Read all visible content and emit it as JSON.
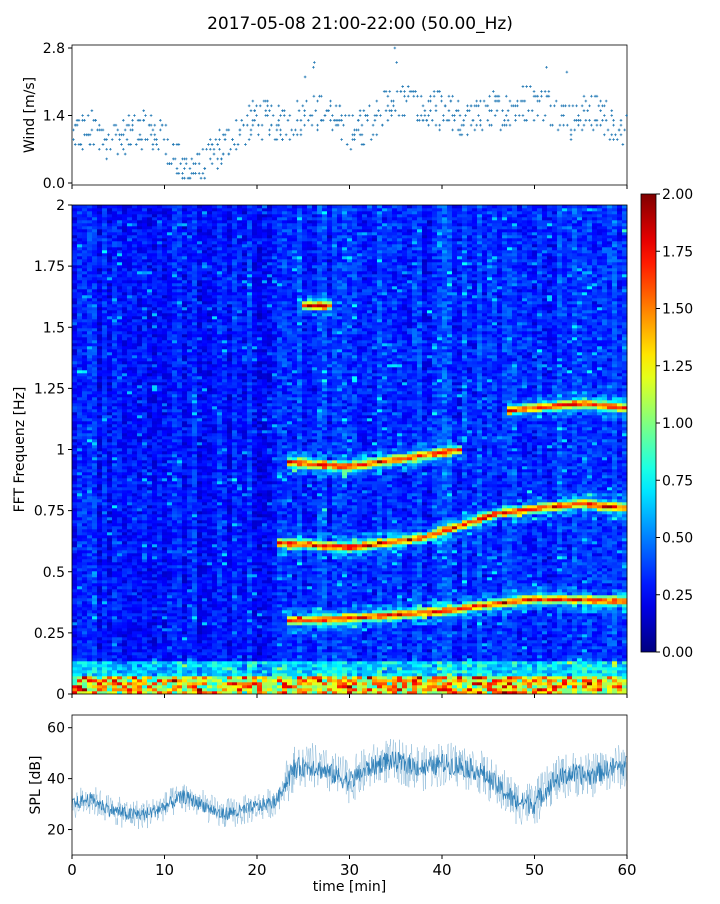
{
  "title": "2017-05-08 21:00-22:00 (50.00_Hz)",
  "colors": {
    "series": "#1f77b4"
  },
  "chart_data": [
    {
      "type": "scatter",
      "name": "wind",
      "ylabel": "Wind [m/s]",
      "xlim": [
        0,
        60
      ],
      "ylim": [
        0,
        2.8
      ],
      "yticks": [
        "0.0",
        "1.4",
        "2.8"
      ],
      "x": [
        0,
        2,
        4,
        6,
        8,
        10,
        12,
        14,
        16,
        18,
        20,
        22,
        24,
        26,
        28,
        30,
        32,
        34,
        36,
        38,
        40,
        42,
        44,
        46,
        48,
        50,
        52,
        54,
        56,
        58,
        60
      ],
      "y": [
        1.0,
        1.1,
        0.9,
        1.0,
        1.1,
        0.9,
        0.3,
        0.3,
        0.7,
        1.0,
        1.4,
        1.2,
        1.3,
        1.5,
        1.4,
        1.1,
        1.2,
        1.6,
        1.7,
        1.5,
        1.5,
        1.3,
        1.4,
        1.5,
        1.6,
        1.7,
        1.6,
        1.3,
        1.5,
        1.3,
        1.1
      ]
    },
    {
      "type": "heatmap",
      "name": "spectrogram",
      "ylabel": "FFT Frequenz [Hz]",
      "xlim": [
        0,
        60
      ],
      "ylim": [
        0,
        2
      ],
      "yticks": [
        "0",
        "0.25",
        "0.5",
        "0.75",
        "1",
        "1.25",
        "1.5",
        "1.75",
        "2"
      ],
      "colorbar": {
        "min": 0,
        "max": 2,
        "ticks": [
          "0.00",
          "0.25",
          "0.50",
          "0.75",
          "1.00",
          "1.25",
          "1.50",
          "1.75",
          "2.00"
        ]
      },
      "ridges": [
        {
          "x": [
            23,
            30,
            40,
            50,
            60
          ],
          "freq": [
            0.3,
            0.31,
            0.34,
            0.39,
            0.38
          ]
        },
        {
          "x": [
            22,
            30,
            38,
            46,
            55,
            60
          ],
          "freq": [
            0.62,
            0.6,
            0.64,
            0.74,
            0.78,
            0.76
          ]
        },
        {
          "x": [
            23,
            30,
            35,
            42
          ],
          "freq": [
            0.95,
            0.93,
            0.96,
            1.0
          ]
        },
        {
          "x": [
            47,
            55,
            60
          ],
          "freq": [
            1.16,
            1.19,
            1.17
          ]
        },
        {
          "x": [
            25,
            28
          ],
          "freq": [
            1.59,
            1.59
          ]
        }
      ]
    },
    {
      "type": "area",
      "name": "spl",
      "ylabel": "SPL [dB]",
      "xlabel": "time [min]",
      "xlim": [
        0,
        60
      ],
      "ylim": [
        10,
        65
      ],
      "xticks": [
        "0",
        "10",
        "20",
        "30",
        "40",
        "50",
        "60"
      ],
      "yticks": [
        "20",
        "40",
        "60"
      ],
      "x": [
        0,
        2,
        4,
        6,
        8,
        10,
        12,
        14,
        16,
        18,
        20,
        22,
        24,
        26,
        28,
        30,
        32,
        34,
        36,
        38,
        40,
        42,
        44,
        46,
        48,
        50,
        52,
        54,
        56,
        58,
        60
      ],
      "y": [
        30,
        32,
        28,
        26,
        26,
        29,
        33,
        30,
        26,
        27,
        29,
        31,
        44,
        45,
        42,
        39,
        44,
        47,
        46,
        44,
        46,
        45,
        43,
        37,
        31,
        30,
        39,
        42,
        41,
        44,
        45
      ]
    }
  ]
}
